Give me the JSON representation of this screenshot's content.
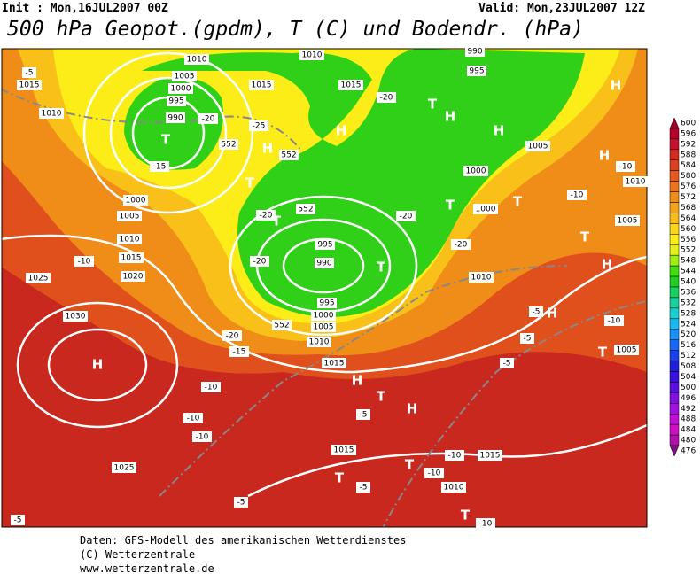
{
  "header": {
    "init": "Init : Mon,16JUL2007 00Z",
    "valid": "Valid: Mon,23JUL2007 12Z",
    "title": "500 hPa Geopot.(gpdm), T (C) und Bodendr. (hPa)"
  },
  "colorbar": {
    "levels": [
      600,
      596,
      592,
      588,
      584,
      580,
      576,
      572,
      568,
      564,
      560,
      556,
      552,
      548,
      544,
      540,
      536,
      532,
      528,
      524,
      520,
      516,
      512,
      508,
      504,
      500,
      496,
      492,
      488,
      484,
      480,
      476
    ],
    "colors": [
      "#a0002c",
      "#b8002c",
      "#c8102a",
      "#d42a20",
      "#dc4020",
      "#e45a1e",
      "#ec741a",
      "#f08c18",
      "#f4a418",
      "#f8bc18",
      "#fcd418",
      "#fcec18",
      "#e4f018",
      "#9cf010",
      "#40e010",
      "#20d020",
      "#18d060",
      "#18d0a0",
      "#18d0d0",
      "#18b8f0",
      "#1890f8",
      "#1868f8",
      "#1840f0",
      "#2020e0",
      "#3c10e0",
      "#5c10e0",
      "#8010e0",
      "#a010e0",
      "#c010d8",
      "#d010c0",
      "#b010a8",
      "#801080"
    ]
  },
  "map": {
    "labels": [
      "H",
      "H",
      "H",
      "H",
      "H",
      "H",
      "H",
      "H",
      "H",
      "H",
      "H",
      "T",
      "T",
      "T",
      "T",
      "T",
      "T",
      "T",
      "T",
      "T",
      "T",
      "T",
      "T",
      "T",
      "1015",
      "1010",
      "1005",
      "1000",
      "995",
      "990",
      "1010",
      "1010",
      "1015",
      "1015",
      "990",
      "995",
      "1005",
      "1000",
      "1000",
      "995",
      "990",
      "995",
      "1000",
      "1005",
      "1010",
      "1015",
      "1025",
      "1030",
      "1025",
      "1015",
      "1015",
      "1010",
      "1010",
      "1020",
      "1015",
      "1010",
      "1005",
      "1000",
      "1005",
      "1005",
      "1010",
      "-5",
      "-20",
      "-15",
      "-10",
      "-15",
      "-20",
      "-10",
      "-10",
      "-10",
      "-5",
      "-5",
      "-10",
      "-10",
      "-5",
      "-5",
      "-10",
      "-5",
      "-5",
      "-5",
      "-10",
      "-10",
      "-10",
      "-20",
      "-20",
      "-20",
      "-25",
      "-20",
      "-20",
      "552",
      "552",
      "552",
      "552"
    ]
  },
  "footer": {
    "lines": [
      "Daten: GFS-Modell des amerikanischen Wetterdienstes",
      "(C) Wetterzentrale",
      "www.wetterzentrale.de"
    ]
  }
}
